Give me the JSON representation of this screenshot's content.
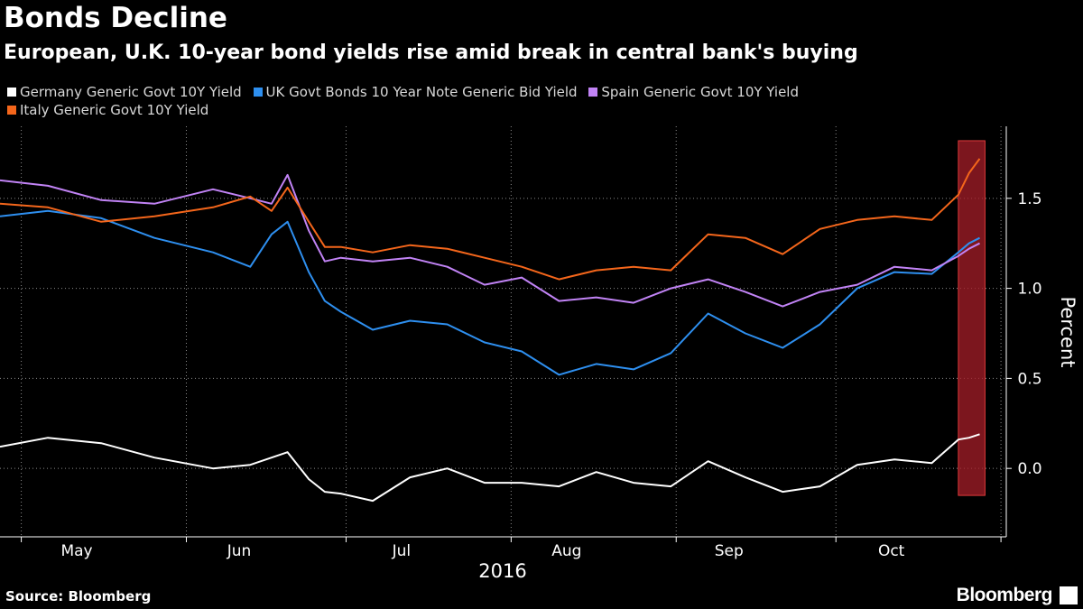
{
  "header": {
    "title": "Bonds Decline",
    "subtitle": "European, U.K. 10-year bond yields rise amid break in central bank's buying"
  },
  "footer": {
    "source": "Source: Bloomberg",
    "brand": "Bloomberg"
  },
  "chart_data": {
    "type": "line",
    "title": "Bonds Decline",
    "subtitle": "European, U.K. 10-year bond yields rise amid break in central bank's buying",
    "xlabel": "2016",
    "ylabel": "Percent",
    "x_ticks": [
      "May",
      "Jun",
      "Jul",
      "Aug",
      "Sep",
      "Oct"
    ],
    "y_ticks": [
      "0.0",
      "0.5",
      "1.0",
      "1.5"
    ],
    "ylim": [
      -0.38,
      1.9
    ],
    "grid": true,
    "legend_position": "top-left",
    "x": [
      "2016-04-27",
      "2016-05-06",
      "2016-05-16",
      "2016-05-26",
      "2016-06-06",
      "2016-06-13",
      "2016-06-17",
      "2016-06-20",
      "2016-06-24",
      "2016-06-27",
      "2016-06-30",
      "2016-07-06",
      "2016-07-13",
      "2016-07-20",
      "2016-07-27",
      "2016-08-03",
      "2016-08-10",
      "2016-08-17",
      "2016-08-24",
      "2016-08-31",
      "2016-09-07",
      "2016-09-14",
      "2016-09-21",
      "2016-09-28",
      "2016-10-05",
      "2016-10-12",
      "2016-10-19",
      "2016-10-24",
      "2016-10-26",
      "2016-10-28"
    ],
    "series": [
      {
        "name": "Germany Generic Govt 10Y Yield",
        "color": "#ffffff",
        "values": [
          0.12,
          0.17,
          0.14,
          0.06,
          0.0,
          0.02,
          0.06,
          0.09,
          -0.06,
          -0.13,
          -0.14,
          -0.18,
          -0.05,
          0.0,
          -0.08,
          -0.08,
          -0.1,
          -0.02,
          -0.08,
          -0.1,
          0.04,
          -0.05,
          -0.13,
          -0.1,
          0.02,
          0.05,
          0.03,
          0.16,
          0.17,
          0.19
        ]
      },
      {
        "name": "UK Govt Bonds 10 Year Note Generic Bid Yield",
        "color": "#2e8fef",
        "values": [
          1.4,
          1.43,
          1.39,
          1.28,
          1.2,
          1.12,
          1.3,
          1.37,
          1.09,
          0.93,
          0.87,
          0.77,
          0.82,
          0.8,
          0.7,
          0.65,
          0.52,
          0.58,
          0.55,
          0.64,
          0.86,
          0.75,
          0.67,
          0.8,
          1.0,
          1.09,
          1.08,
          1.2,
          1.25,
          1.28
        ]
      },
      {
        "name": "Spain Generic Govt 10Y Yield",
        "color": "#c183f5",
        "values": [
          1.6,
          1.57,
          1.49,
          1.47,
          1.55,
          1.5,
          1.47,
          1.63,
          1.32,
          1.15,
          1.17,
          1.15,
          1.17,
          1.12,
          1.02,
          1.06,
          0.93,
          0.95,
          0.92,
          1.0,
          1.05,
          0.98,
          0.9,
          0.98,
          1.02,
          1.12,
          1.1,
          1.18,
          1.22,
          1.25
        ]
      },
      {
        "name": "Italy Generic Govt 10Y Yield",
        "color": "#f4661b",
        "values": [
          1.47,
          1.45,
          1.37,
          1.4,
          1.45,
          1.51,
          1.43,
          1.56,
          1.37,
          1.23,
          1.23,
          1.2,
          1.24,
          1.22,
          1.17,
          1.12,
          1.05,
          1.1,
          1.12,
          1.1,
          1.3,
          1.28,
          1.19,
          1.33,
          1.38,
          1.4,
          1.38,
          1.52,
          1.64,
          1.72
        ]
      }
    ],
    "highlight_band": {
      "from": "2016-10-24",
      "to": "2016-10-29",
      "color": "#a61e28"
    }
  }
}
